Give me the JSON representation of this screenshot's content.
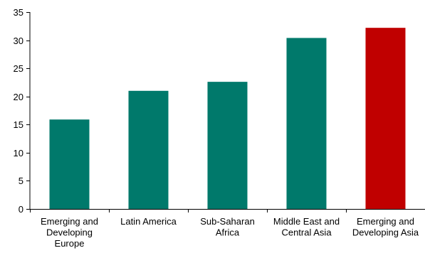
{
  "chart_data": {
    "type": "bar",
    "title": "",
    "xlabel": "",
    "ylabel": "",
    "ylim": [
      0,
      35
    ],
    "yticks": [
      0,
      5,
      10,
      15,
      20,
      25,
      30,
      35
    ],
    "grid": false,
    "legend": "none",
    "categories": [
      "Emerging and Developing Europe",
      "Latin America",
      "Sub-Saharan Africa",
      "Middle East and Central Asia",
      "Emerging and Developing Asia"
    ],
    "category_label_lines": [
      [
        "Emerging and",
        "Developing",
        "Europe"
      ],
      [
        "Latin America"
      ],
      [
        "Sub-Saharan",
        "Africa"
      ],
      [
        "Middle East and",
        "Central Asia"
      ],
      [
        "Emerging and",
        "Developing Asia"
      ]
    ],
    "values": [
      15.9,
      21.0,
      22.6,
      30.4,
      32.2
    ],
    "bar_colors": [
      "#00796b",
      "#00796b",
      "#00796b",
      "#00796b",
      "#c00000"
    ],
    "colors": {
      "default_bar": "#00796b",
      "highlight_bar": "#c00000",
      "axis": "#000000"
    }
  }
}
